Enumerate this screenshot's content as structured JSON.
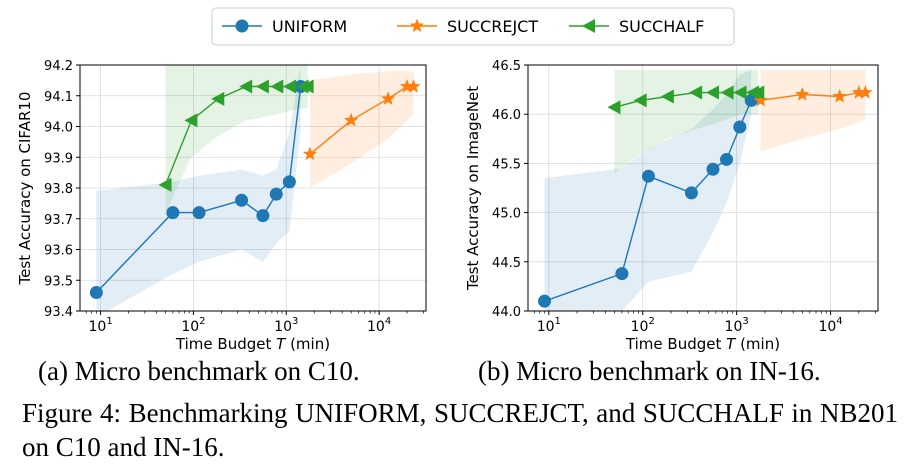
{
  "legend": [
    "UNIFORM",
    "SUCCREJCT",
    "SUCCHALF"
  ],
  "colors": {
    "UNIFORM": "#1f77b4",
    "SUCCREJCT": "#ff7f0e",
    "SUCCHALF": "#2ca02c"
  },
  "subcaptions": {
    "a": "(a) Micro benchmark on C10.",
    "b": "(b) Micro benchmark on IN-16."
  },
  "caption": "Figure 4:  Benchmarking UNIFORM, SUCCREJCT, and SUCCHALF in NB201 on C10 and IN-16.",
  "chart_data": [
    {
      "type": "line",
      "xlabel": "Time Budget T (min)",
      "ylabel": "Test Accuracy on CIFAR10",
      "xscale": "log",
      "xlim": [
        6,
        32000
      ],
      "ylim": [
        93.4,
        94.2
      ],
      "xticks": [
        10,
        100,
        1000,
        10000
      ],
      "yticks": [
        93.4,
        93.5,
        93.6,
        93.7,
        93.8,
        93.9,
        94.0,
        94.1,
        94.2
      ],
      "ytick_labels": [
        "93.4",
        "93.5",
        "93.6",
        "93.7",
        "93.8",
        "93.9",
        "94.0",
        "94.1",
        "94.2"
      ],
      "grid": true,
      "series": [
        {
          "name": "UNIFORM",
          "marker": "circle",
          "x": [
            9,
            60,
            115,
            330,
            560,
            780,
            1080,
            1430
          ],
          "y": [
            93.46,
            93.72,
            93.72,
            93.76,
            93.71,
            93.78,
            93.82,
            94.13
          ],
          "band_low": [
            93.38,
            93.52,
            93.56,
            93.6,
            93.56,
            93.62,
            93.66,
            93.99
          ],
          "band_high": [
            93.79,
            93.82,
            93.84,
            93.86,
            93.84,
            93.86,
            93.98,
            94.2
          ]
        },
        {
          "name": "SUCCREJCT",
          "marker": "star",
          "x": [
            1800,
            5000,
            12500,
            20000,
            23500
          ],
          "y": [
            93.91,
            94.02,
            94.09,
            94.13,
            94.13
          ],
          "band_low": [
            93.8,
            93.88,
            93.96,
            94.02,
            94.04
          ],
          "band_high": [
            94.15,
            94.17,
            94.18,
            94.18,
            94.18
          ]
        },
        {
          "name": "SUCCHALF",
          "marker": "triangle-left",
          "x": [
            50,
            95,
            185,
            370,
            560,
            800,
            1100,
            1500,
            1700
          ],
          "y": [
            93.81,
            94.02,
            94.09,
            94.13,
            94.13,
            94.13,
            94.13,
            94.13,
            94.13
          ],
          "band_low": [
            93.72,
            93.9,
            93.97,
            94.02,
            94.03,
            94.04,
            94.05,
            94.06,
            94.06
          ],
          "band_high": [
            94.2,
            94.2,
            94.2,
            94.2,
            94.2,
            94.2,
            94.2,
            94.2,
            94.2
          ]
        }
      ]
    },
    {
      "type": "line",
      "xlabel": "Time Budget T (min)",
      "ylabel": "Test Accuracy on ImageNet",
      "xscale": "log",
      "xlim": [
        6,
        32000
      ],
      "ylim": [
        44.0,
        46.5
      ],
      "xticks": [
        10,
        100,
        1000,
        10000
      ],
      "yticks": [
        44.0,
        44.5,
        45.0,
        45.5,
        46.0,
        46.5
      ],
      "ytick_labels": [
        "44.0",
        "44.5",
        "45.0",
        "45.5",
        "46.0",
        "46.5"
      ],
      "grid": true,
      "series": [
        {
          "name": "UNIFORM",
          "marker": "circle",
          "x": [
            9,
            60,
            115,
            330,
            560,
            780,
            1080,
            1430
          ],
          "y": [
            44.1,
            44.38,
            45.37,
            45.2,
            45.44,
            45.54,
            45.87,
            46.14
          ],
          "band_low": [
            44.0,
            44.0,
            44.3,
            44.4,
            44.8,
            45.1,
            45.5,
            46.0
          ],
          "band_high": [
            45.35,
            45.45,
            45.65,
            45.85,
            46.05,
            46.2,
            46.4,
            46.45
          ]
        },
        {
          "name": "SUCCREJCT",
          "marker": "star",
          "x": [
            1800,
            5000,
            12500,
            20000,
            23500
          ],
          "y": [
            46.14,
            46.2,
            46.18,
            46.22,
            46.22
          ],
          "band_low": [
            45.62,
            45.75,
            45.85,
            45.92,
            45.95
          ],
          "band_high": [
            46.45,
            46.45,
            46.45,
            46.45,
            46.45
          ]
        },
        {
          "name": "SUCCHALF",
          "marker": "triangle-left",
          "x": [
            50,
            95,
            185,
            370,
            560,
            800,
            1100,
            1500,
            1700
          ],
          "y": [
            46.07,
            46.14,
            46.18,
            46.22,
            46.22,
            46.22,
            46.22,
            46.22,
            46.22
          ],
          "band_low": [
            45.4,
            45.6,
            45.75,
            45.85,
            45.9,
            45.95,
            46.0,
            46.0,
            46.0
          ],
          "band_high": [
            46.45,
            46.45,
            46.45,
            46.45,
            46.45,
            46.45,
            46.45,
            46.45,
            46.45
          ]
        }
      ]
    }
  ]
}
